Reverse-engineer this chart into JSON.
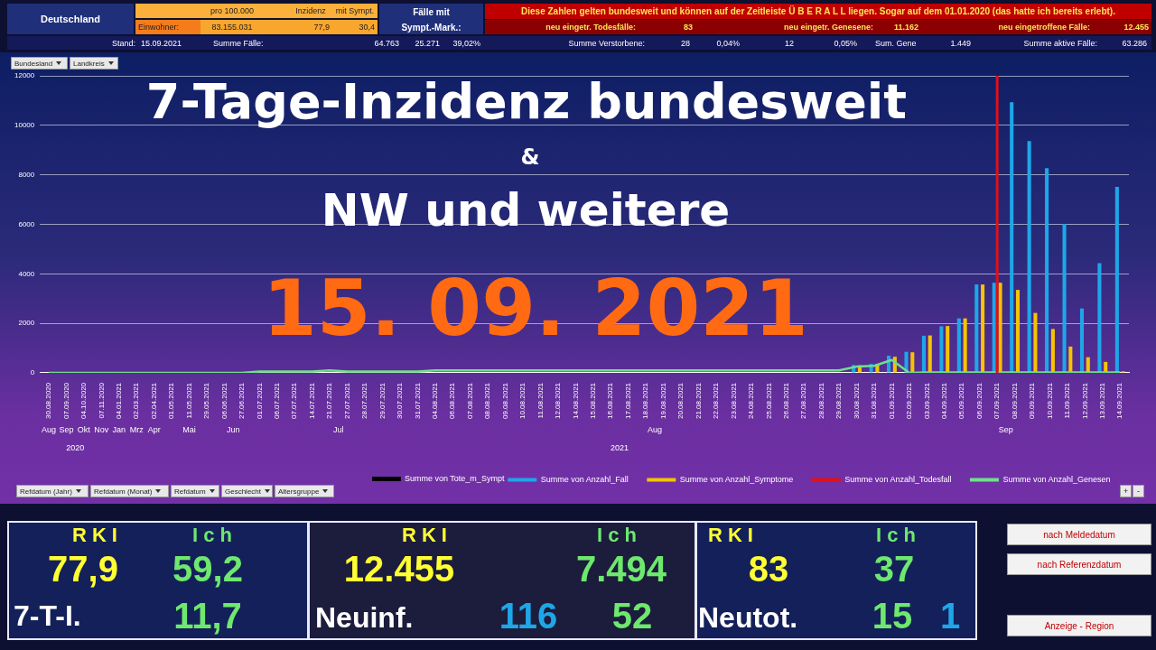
{
  "chart_data": [
    {
      "type": "other",
      "annotations": [
        "Deutschland",
        "pro 100.000",
        "Inzidenz",
        "mit Sympt.",
        "Einwohner:",
        "83.155.031",
        "77,9",
        "30,4",
        "Fälle mit",
        "Sympt.-Mark.:",
        "Diese Zahlen gelten bundesweit und können auf der Zeitleiste  Ü B E R A L L  liegen. Sogar auf dem 01.01.2020 (das hatte ich bereits erlebt).",
        "neu eingetr. Todesfälle:",
        "83",
        "neu eingetr. Genesene:",
        "11.162",
        "neu eingetroffene Fälle:",
        "12.455",
        "Stand:",
        "15.09.2021",
        "Summe Fälle:",
        "64.763",
        "25.271",
        "39,02%",
        "Summe Verstorbene:",
        "28",
        "0,04%",
        "12",
        "0,05%",
        "Sum. Gene",
        "1.449",
        "Summe aktive Fälle:",
        "63.286",
        "Bundesland",
        "Landkreis",
        "Refdatum (Jahr)",
        "Refdatum (Monat)",
        "Refdatum",
        "Geschlecht",
        "Altersgruppe",
        "+",
        "-"
      ]
    },
    {
      "type": "bar",
      "title": "7-Tage-Inzidenz bundesweit",
      "subtitle": "NW und weitere",
      "categories": [
        "30.08.2020",
        "07.09.2020",
        "04.10.2020",
        "07.11.2020",
        "04.01.2021",
        "02.03.2021",
        "02.04.2021",
        "01.05.2021",
        "11.05.2021",
        "29.05.2021",
        "06.06.2021",
        "27.06.2021",
        "01.07.2021",
        "06.07.2021",
        "07.07.2021",
        "14.07.2021",
        "21.07.2021",
        "27.07.2021",
        "28.07.2021",
        "29.07.2021",
        "30.07.2021",
        "31.07.2021",
        "04.08.2021",
        "06.08.2021",
        "07.08.2021",
        "08.08.2021",
        "09.08.2021",
        "10.08.2021",
        "11.08.2021",
        "12.08.2021",
        "14.08.2021",
        "15.08.2021",
        "16.08.2021",
        "17.08.2021",
        "18.08.2021",
        "19.08.2021",
        "20.08.2021",
        "21.08.2021",
        "22.08.2021",
        "23.08.2021",
        "24.08.2021",
        "25.08.2021",
        "26.08.2021",
        "27.08.2021",
        "28.08.2021",
        "29.08.2021",
        "30.08.2021",
        "31.08.2021",
        "01.09.2021",
        "02.09.2021",
        "03.09.2021",
        "04.09.2021",
        "05.09.2021",
        "06.09.2021",
        "07.09.2021",
        "08.09.2021",
        "09.09.2021",
        "10.09.2021",
        "11.09.2021",
        "12.09.2021",
        "13.09.2021",
        "14.09.2021"
      ],
      "series": [
        {
          "name": "Summe von Anzahl_Fall",
          "color": "#1ea7e8",
          "values": [
            null,
            null,
            null,
            null,
            null,
            null,
            null,
            null,
            null,
            null,
            null,
            null,
            null,
            null,
            null,
            null,
            null,
            null,
            null,
            null,
            null,
            null,
            null,
            null,
            null,
            null,
            null,
            null,
            null,
            null,
            null,
            null,
            null,
            null,
            null,
            null,
            null,
            null,
            null,
            null,
            null,
            null,
            null,
            null,
            null,
            null,
            320,
            360,
            690,
            850,
            1500,
            1880,
            2200,
            3570,
            3640,
            10930,
            9360,
            8270,
            6020,
            2600,
            4430,
            7510
          ]
        },
        {
          "name": "Summe von Anzahl_Symptome",
          "color": "#f5c400",
          "values": [
            null,
            null,
            null,
            null,
            null,
            null,
            null,
            null,
            null,
            null,
            null,
            null,
            null,
            null,
            null,
            null,
            null,
            null,
            null,
            null,
            null,
            null,
            null,
            null,
            null,
            null,
            null,
            null,
            null,
            null,
            null,
            null,
            null,
            null,
            null,
            null,
            null,
            null,
            null,
            null,
            null,
            null,
            null,
            null,
            null,
            null,
            300,
            350,
            650,
            830,
            1510,
            1890,
            2200,
            3570,
            3640,
            3350,
            2420,
            1770,
            1060,
            630,
            440,
            60
          ]
        },
        {
          "name": "Summe von Anzahl_Genesen",
          "color": "#6fe08a",
          "type": "line",
          "values": [
            0,
            0,
            0,
            0,
            0,
            0,
            0,
            0,
            0,
            0,
            0,
            0,
            50,
            50,
            50,
            50,
            100,
            50,
            50,
            50,
            50,
            50,
            100,
            100,
            100,
            100,
            100,
            100,
            100,
            100,
            100,
            100,
            100,
            100,
            100,
            100,
            100,
            100,
            100,
            100,
            100,
            100,
            100,
            100,
            100,
            100,
            250,
            280,
            520,
            0,
            20,
            20,
            20,
            20,
            20,
            20,
            20,
            20,
            20,
            20,
            20,
            20
          ]
        }
      ],
      "ylim": [
        0,
        12000
      ],
      "yticks": [
        0,
        2000,
        4000,
        6000,
        8000,
        10000,
        12000
      ],
      "grid": "y",
      "legend": "bottom",
      "ref_lines": [
        {
          "axis": "x",
          "value": "07.09.2021",
          "color": "#e0101a",
          "label": "Summe von Anzahl_Todesfall"
        }
      ],
      "annotations": [
        "&",
        "15. 09. 2021",
        "Aug",
        "Sep",
        "Okt",
        "Nov",
        "Jan",
        "Mrz",
        "Apr",
        "Mai",
        "Jun",
        "Jul",
        "Aug",
        "Sep",
        "2020",
        "2021",
        "Summe von Tote_m_Sympt"
      ]
    },
    {
      "type": "other",
      "annotations": [
        "RKI",
        "Ich",
        "77,9",
        "59,2",
        "7-T-I.",
        "11,7",
        "RKI",
        "Ich",
        "12.455",
        "7.494",
        "Neuinf.",
        "116",
        "52",
        "RKI",
        "Ich",
        "83",
        "37",
        "Neutot.",
        "15",
        "1",
        "nach Meldedatum",
        "nach Referenzdatum",
        "Anzeige - Region"
      ]
    }
  ]
}
